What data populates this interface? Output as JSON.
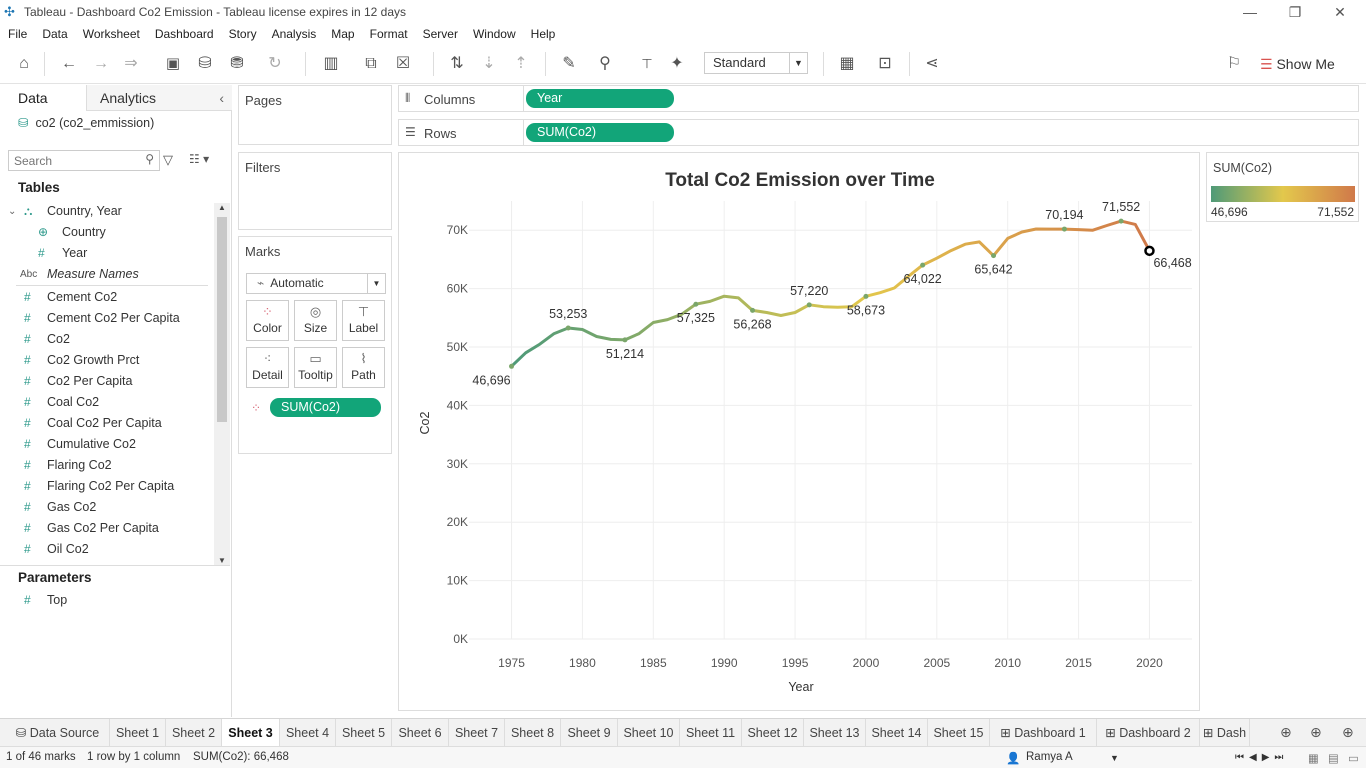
{
  "window": {
    "title": "Tableau - Dashboard  Co2 Emission - Tableau license expires in 12 days"
  },
  "menu": [
    "File",
    "Data",
    "Worksheet",
    "Dashboard",
    "Story",
    "Analysis",
    "Map",
    "Format",
    "Server",
    "Window",
    "Help"
  ],
  "toolbar": {
    "fit": "Standard",
    "show_me": "Show Me"
  },
  "data_pane": {
    "tabs": [
      "Data",
      "Analytics"
    ],
    "datasource": "co2 (co2_emmission)",
    "search_placeholder": "Search",
    "tables_heading": "Tables",
    "hierarchy": "Country, Year",
    "dimensions": [
      "Country",
      "Year"
    ],
    "measure_names": "Measure Names",
    "measures": [
      "Cement Co2",
      "Cement Co2 Per Capita",
      "Co2",
      "Co2 Growth Prct",
      "Co2 Per Capita",
      "Coal Co2",
      "Coal Co2 Per Capita",
      "Cumulative Co2",
      "Flaring Co2",
      "Flaring Co2 Per Capita",
      "Gas Co2",
      "Gas Co2 Per Capita",
      "Oil Co2"
    ],
    "parameters_heading": "Parameters",
    "parameters": [
      "Top"
    ]
  },
  "shelves": {
    "pages": "Pages",
    "filters": "Filters",
    "marks": "Marks",
    "mark_type": "Automatic",
    "mark_buttons": [
      "Color",
      "Size",
      "Label",
      "Detail",
      "Tooltip",
      "Path"
    ],
    "mark_pill": "SUM(Co2)",
    "columns_label": "Columns",
    "columns_pill": "Year",
    "rows_label": "Rows",
    "rows_pill": "SUM(Co2)"
  },
  "legend": {
    "title": "SUM(Co2)",
    "min": "46,696",
    "max": "71,552"
  },
  "chart_data": {
    "type": "line",
    "title": "Total Co2 Emission over Time",
    "xlabel": "Year",
    "ylabel": "Co2",
    "xlim": [
      1972,
      2023
    ],
    "ylim": [
      0,
      75000
    ],
    "x_ticks": [
      1975,
      1980,
      1985,
      1990,
      1995,
      2000,
      2005,
      2010,
      2015,
      2020
    ],
    "y_ticks": [
      "0K",
      "10K",
      "20K",
      "30K",
      "40K",
      "50K",
      "60K",
      "70K"
    ],
    "grid": true,
    "color_scale": [
      "#4f9a78",
      "#e6c84a",
      "#d0794a"
    ],
    "series": [
      {
        "x": [
          1975,
          1976,
          1977,
          1978,
          1979,
          1980,
          1981,
          1982,
          1983,
          1984,
          1985,
          1986,
          1987,
          1988,
          1989,
          1990,
          1991,
          1992,
          1993,
          1994,
          1995,
          1996,
          1997,
          1998,
          1999,
          2000,
          2001,
          2002,
          2003,
          2004,
          2005,
          2006,
          2007,
          2008,
          2009,
          2010,
          2011,
          2012,
          2013,
          2014,
          2015,
          2016,
          2017,
          2018,
          2019,
          2020
        ],
        "values": [
          46696,
          49000,
          50500,
          52300,
          53253,
          53000,
          51800,
          51300,
          51214,
          52300,
          54200,
          54700,
          55600,
          57325,
          57800,
          58700,
          58400,
          56268,
          55900,
          55400,
          55900,
          57220,
          56900,
          56800,
          56900,
          58673,
          59300,
          60100,
          62100,
          64022,
          65200,
          66500,
          67600,
          68000,
          65642,
          68600,
          69700,
          70200,
          70194,
          70194,
          70100,
          70000,
          70800,
          71552,
          71000,
          66468
        ]
      }
    ],
    "labels": [
      {
        "x": 1975,
        "text": "46,696"
      },
      {
        "x": 1979,
        "text": "53,253"
      },
      {
        "x": 1983,
        "text": "51,214"
      },
      {
        "x": 1988,
        "text": "57,325"
      },
      {
        "x": 1992,
        "text": "56,268"
      },
      {
        "x": 1996,
        "text": "57,220"
      },
      {
        "x": 2000,
        "text": "58,673"
      },
      {
        "x": 2004,
        "text": "64,022"
      },
      {
        "x": 2009,
        "text": "65,642"
      },
      {
        "x": 2014,
        "text": "70,194"
      },
      {
        "x": 2018,
        "text": "71,552"
      },
      {
        "x": 2020,
        "text": "66,468"
      }
    ]
  },
  "sheet_tabs": [
    "Data Source",
    "Sheet 1",
    "Sheet 2",
    "Sheet 3",
    "Sheet 4",
    "Sheet 5",
    "Sheet 6",
    "Sheet 7",
    "Sheet 8",
    "Sheet 9",
    "Sheet 10",
    "Sheet 11",
    "Sheet 12",
    "Sheet 13",
    "Sheet 14",
    "Sheet 15",
    "Dashboard 1",
    "Dashboard 2",
    "Dash"
  ],
  "active_tab": "Sheet 3",
  "status": {
    "marks": "1 of 46 marks",
    "rows": "1 row by 1 column",
    "sum": "SUM(Co2): 66,468",
    "user": "Ramya A"
  }
}
